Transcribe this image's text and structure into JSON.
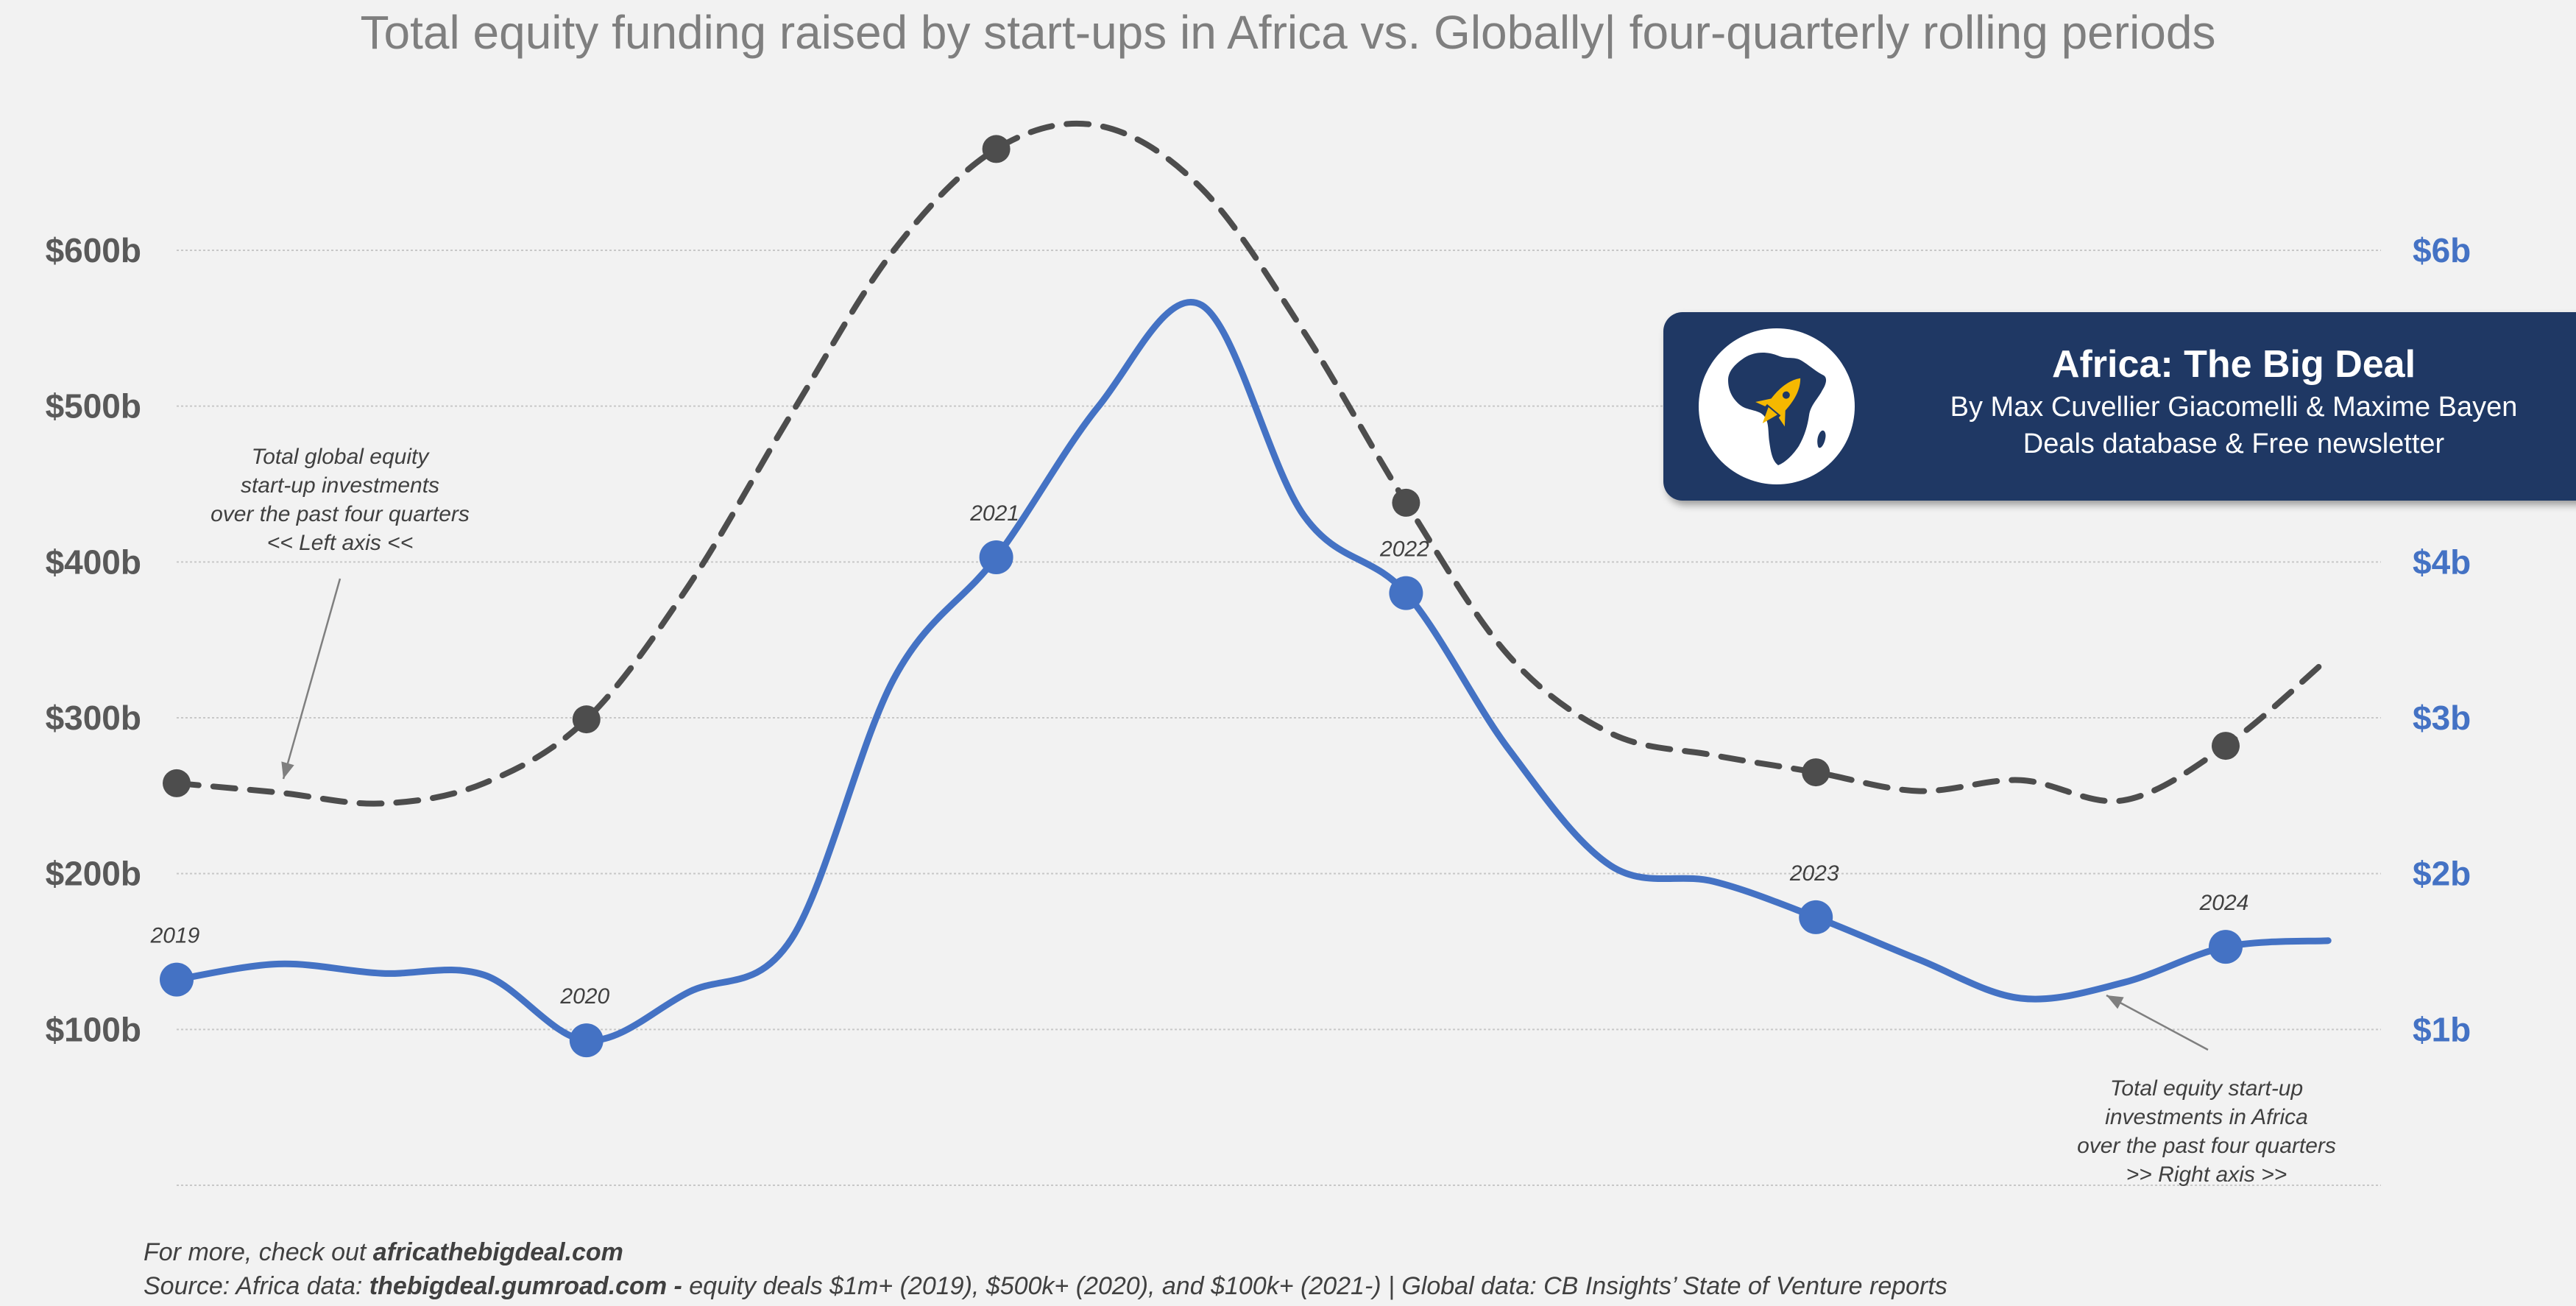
{
  "title": "Total equity funding raised by start-ups in Africa vs. Globally| four-quarterly rolling periods",
  "colors": {
    "background": "#f2f2f2",
    "global_series": "#4d4d4d",
    "africa_series": "#4472c4",
    "left_axis_text": "#595959",
    "right_axis_text": "#4472c4",
    "grid": "#c8c8c8",
    "brand_box": "#1f3864",
    "rocket": "#f5b800"
  },
  "chart_data": {
    "type": "line",
    "title": "Total equity funding raised by start-ups in Africa vs. Globally| four-quarterly rolling periods",
    "x_unit": "quarter index (each year label marks a Q4-ending period)",
    "y_left": {
      "ticks": [
        100,
        200,
        300,
        400,
        500,
        600
      ],
      "tick_labels": [
        "$100b",
        "$200b",
        "$300b",
        "$400b",
        "$500b",
        "$600b"
      ],
      "ylim": [
        0,
        600
      ],
      "unit": "$ billions"
    },
    "y_right": {
      "ticks": [
        1,
        2,
        3,
        4,
        6
      ],
      "tick_labels": [
        "$1b",
        "$2b",
        "$3b",
        "$4b",
        "$6b"
      ],
      "ylim": [
        0,
        6
      ],
      "unit": "$ billions"
    },
    "grid": true,
    "year_labels": [
      {
        "label": "2019",
        "x": 0
      },
      {
        "label": "2020",
        "x": 4
      },
      {
        "label": "2021",
        "x": 8
      },
      {
        "label": "2022",
        "x": 12
      },
      {
        "label": "2023",
        "x": 16
      },
      {
        "label": "2024",
        "x": 20
      }
    ],
    "series": [
      {
        "axis": "left",
        "style": "dashed",
        "x": [
          0,
          1,
          2,
          3,
          4,
          5,
          6,
          7,
          8,
          9,
          10,
          11,
          12,
          13,
          14,
          15,
          16,
          17,
          18,
          19,
          20,
          21
        ],
        "values": [
          258,
          252,
          245,
          258,
          299,
          385,
          495,
          600,
          665,
          680,
          640,
          548,
          438,
          340,
          290,
          276,
          265,
          253,
          260,
          247,
          282,
          338
        ],
        "marker_x": [
          0,
          4,
          8,
          12,
          16,
          20
        ]
      },
      {
        "axis": "right",
        "style": "solid",
        "x": [
          0,
          1,
          2,
          3,
          4,
          5,
          6,
          7,
          8,
          9,
          10,
          11,
          12,
          13,
          14,
          15,
          16,
          17,
          18,
          19,
          20,
          21
        ],
        "values": [
          1.32,
          1.42,
          1.36,
          1.35,
          0.93,
          1.24,
          1.58,
          3.25,
          4.03,
          5.0,
          5.65,
          4.3,
          3.8,
          2.8,
          2.05,
          1.95,
          1.72,
          1.45,
          1.2,
          1.3,
          1.53,
          1.57
        ],
        "marker_x": [
          0,
          4,
          8,
          12,
          16,
          20
        ]
      }
    ],
    "annotations": [
      {
        "target": "global",
        "lines": [
          "Total global equity",
          "start-up investments",
          "over the past four quarters",
          "<< Left axis <<"
        ]
      },
      {
        "target": "africa",
        "lines": [
          "Total equity start-up",
          "investments in Africa",
          "over the past four quarters",
          ">> Right axis >>"
        ]
      }
    ]
  },
  "brand": {
    "title": "Africa: The Big Deal",
    "line1": "By Max Cuvellier Giacomelli & Maxime Bayen",
    "line2": "Deals database & Free newsletter",
    "logo_icon": "africa-map-rocket-icon"
  },
  "footer": {
    "more_prefix": "For more, check out ",
    "more_link": "africathebigdeal.com",
    "source_prefix": "Source: Africa data: ",
    "source_link": "thebigdeal.gumroad.com - ",
    "source_rest": "equity deals $1m+ (2019), $500k+ (2020), and $100k+ (2021-) | Global data: CB Insights’ State of Venture reports"
  }
}
